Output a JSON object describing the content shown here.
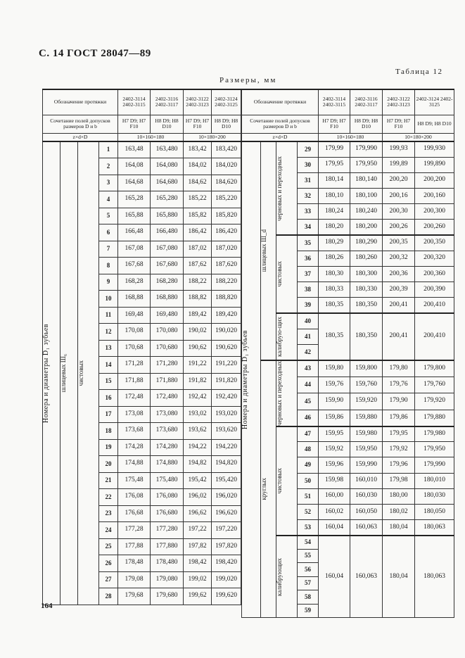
{
  "header": {
    "page_label": "С. 14  ГОСТ 28047—89",
    "units": "Размеры, мм",
    "table_name": "Таблица 12",
    "page_number": "164"
  },
  "columns": {
    "designation_label": "Обозначение протяжки",
    "designations": [
      "2402-3114 2402-3115",
      "2402-3116 2402-3117",
      "2402-3122 2402-3123",
      "2402-3124 2402-3125"
    ],
    "fit_label": "Сочетание полей допусков размеров D и b",
    "fits": [
      "H7 D9; H7 F10",
      "H8 D9; H8 D10",
      "H7 D9; H7 F10",
      "H8 D9; H8 D10"
    ],
    "size_label": "z×d×D",
    "sizes": [
      "10×160×180",
      "10×180×200"
    ]
  },
  "left": {
    "label_main": "Номера и диаметры D₁ зубьев",
    "label_type": "шлицевых Ш₆",
    "label_group": "чистовых",
    "rows": [
      [
        "1",
        "163,48",
        "163,480",
        "183,42",
        "183,420"
      ],
      [
        "2",
        "164,08",
        "164,080",
        "184,02",
        "184,020"
      ],
      [
        "3",
        "164,68",
        "164,680",
        "184,62",
        "184,620"
      ],
      [
        "4",
        "165,28",
        "165,280",
        "185,22",
        "185,220"
      ],
      [
        "5",
        "165,88",
        "165,880",
        "185,82",
        "185,820"
      ],
      [
        "6",
        "166,48",
        "166,480",
        "186,42",
        "186,420"
      ],
      [
        "7",
        "167,08",
        "167,080",
        "187,02",
        "187,020"
      ],
      [
        "8",
        "167,68",
        "167,680",
        "187,62",
        "187,620"
      ],
      [
        "9",
        "168,28",
        "168,280",
        "188,22",
        "188,220"
      ],
      [
        "10",
        "168,88",
        "168,880",
        "188,82",
        "188,820"
      ],
      [
        "11",
        "169,48",
        "169,480",
        "189,42",
        "189,420"
      ],
      [
        "12",
        "170,08",
        "170,080",
        "190,02",
        "190,020"
      ],
      [
        "13",
        "170,68",
        "170,680",
        "190,62",
        "190,620"
      ],
      [
        "14",
        "171,28",
        "171,280",
        "191,22",
        "191,220"
      ],
      [
        "15",
        "171,88",
        "171,880",
        "191,82",
        "191,820"
      ],
      [
        "16",
        "172,48",
        "172,480",
        "192,42",
        "192,420"
      ],
      [
        "17",
        "173,08",
        "173,080",
        "193,02",
        "193,020"
      ],
      [
        "18",
        "173,68",
        "173,680",
        "193,62",
        "193,620"
      ],
      [
        "19",
        "174,28",
        "174,280",
        "194,22",
        "194,220"
      ],
      [
        "20",
        "174,88",
        "174,880",
        "194,82",
        "194,820"
      ],
      [
        "21",
        "175,48",
        "175,480",
        "195,42",
        "195,420"
      ],
      [
        "22",
        "176,08",
        "176,080",
        "196,02",
        "196,020"
      ],
      [
        "23",
        "176,68",
        "176,680",
        "196,62",
        "196,620"
      ],
      [
        "24",
        "177,28",
        "177,280",
        "197,22",
        "197,220"
      ],
      [
        "25",
        "177,88",
        "177,880",
        "197,82",
        "197,820"
      ],
      [
        "26",
        "178,48",
        "178,480",
        "198,42",
        "198,420"
      ],
      [
        "27",
        "179,08",
        "179,080",
        "199,02",
        "199,020"
      ],
      [
        "28",
        "179,68",
        "179,680",
        "199,62",
        "199,620"
      ]
    ]
  },
  "right": {
    "label_main": "Номера и диаметры D₁ зубьев",
    "types": [
      {
        "label": "шлицевых Ш_d",
        "groups": [
          {
            "label": "черновых и переходных",
            "rows": [
              [
                "29",
                "179,99",
                "179,990",
                "199,93",
                "199,930"
              ],
              [
                "30",
                "179,95",
                "179,950",
                "199,89",
                "199,890"
              ],
              [
                "31",
                "180,14",
                "180,140",
                "200,20",
                "200,200"
              ],
              [
                "32",
                "180,10",
                "180,100",
                "200,16",
                "200,160"
              ],
              [
                "33",
                "180,24",
                "180,240",
                "200,30",
                "200,300"
              ],
              [
                "34",
                "180,20",
                "180,200",
                "200,26",
                "200,260"
              ]
            ]
          },
          {
            "label": "чистовых",
            "rows": [
              [
                "35",
                "180,29",
                "180,290",
                "200,35",
                "200,350"
              ],
              [
                "36",
                "180,26",
                "180,260",
                "200,32",
                "200,320"
              ],
              [
                "37",
                "180,30",
                "180,300",
                "200,36",
                "200,360"
              ],
              [
                "38",
                "180,33",
                "180,330",
                "200,39",
                "200,390"
              ],
              [
                "39",
                "180,35",
                "180,350",
                "200,41",
                "200,410"
              ]
            ]
          },
          {
            "label": "калибрую-щих",
            "numbers": [
              "40",
              "41",
              "42"
            ],
            "merged": [
              "180,35",
              "180,350",
              "200,41",
              "200,410"
            ]
          }
        ]
      },
      {
        "label": "круглых",
        "groups": [
          {
            "label": "черновых и переходных",
            "rows": [
              [
                "43",
                "159,80",
                "159,800",
                "179,80",
                "179,800"
              ],
              [
                "44",
                "159,76",
                "159,760",
                "179,76",
                "179,760"
              ],
              [
                "45",
                "159,90",
                "159,920",
                "179,90",
                "179,920"
              ],
              [
                "46",
                "159,86",
                "159,880",
                "179,86",
                "179,880"
              ]
            ]
          },
          {
            "label": "чистовых",
            "rows": [
              [
                "47",
                "159,95",
                "159,980",
                "179,95",
                "179,980"
              ],
              [
                "48",
                "159,92",
                "159,950",
                "179,92",
                "179,950"
              ],
              [
                "49",
                "159,96",
                "159,990",
                "179,96",
                "179,990"
              ],
              [
                "50",
                "159,98",
                "160,010",
                "179,98",
                "180,010"
              ],
              [
                "51",
                "160,00",
                "160,030",
                "180,00",
                "180,030"
              ],
              [
                "52",
                "160,02",
                "160,050",
                "180,02",
                "180,050"
              ],
              [
                "53",
                "160,04",
                "160,063",
                "180,04",
                "180,063"
              ]
            ]
          },
          {
            "label": "калибрующих",
            "numbers": [
              "54",
              "55",
              "56",
              "57",
              "58",
              "59"
            ],
            "merged": [
              "160,04",
              "160,063",
              "180,04",
              "180,063"
            ]
          }
        ]
      }
    ]
  }
}
